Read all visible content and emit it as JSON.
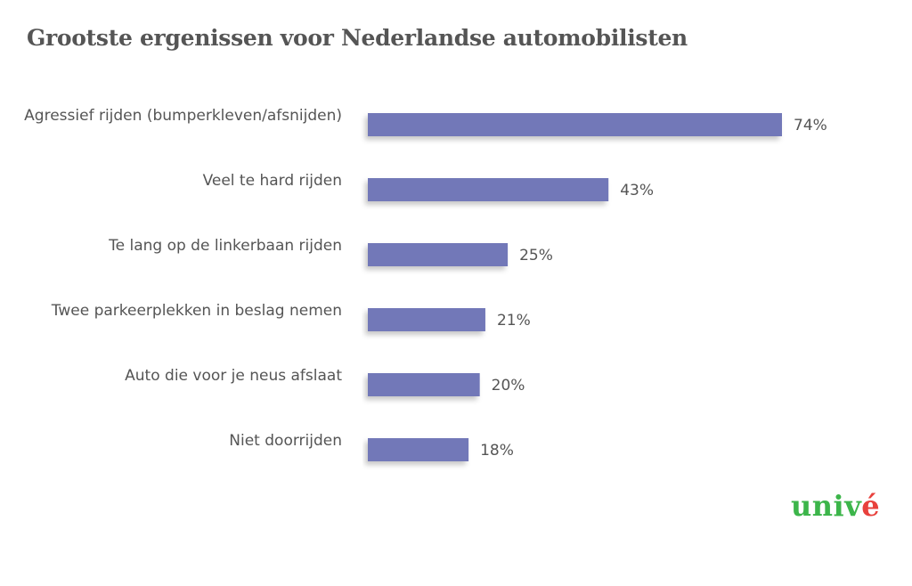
{
  "title": "Grootste ergenissen voor Nederlandse automobilisten",
  "logo": {
    "text": "univé",
    "color_primary": "#3cb54a",
    "color_accent": "#e8413c"
  },
  "colors": {
    "bar": "#7278b8",
    "text": "#555555"
  },
  "chart_data": {
    "type": "bar",
    "orientation": "horizontal",
    "categories": [
      "Agressief rijden (bumperkleven/afsnijden)",
      "Veel te hard rijden",
      "Te lang op de linkerbaan rijden",
      "Twee parkeerplekken in beslag nemen",
      "Auto die voor je neus afslaat",
      "Niet doorrijden"
    ],
    "values": [
      74,
      43,
      25,
      21,
      20,
      18
    ],
    "value_labels": [
      "74%",
      "43%",
      "25%",
      "21%",
      "20%",
      "18%"
    ],
    "title": "Grootste ergenissen voor Nederlandse automobilisten",
    "xlabel": "",
    "ylabel": "",
    "xlim": [
      0,
      100
    ],
    "grid": false,
    "legend": "none"
  }
}
